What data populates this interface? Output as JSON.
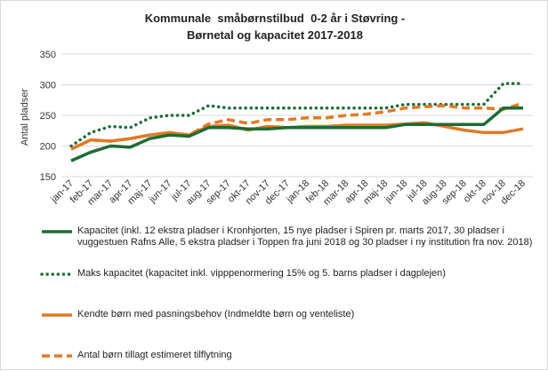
{
  "chart_data": {
    "type": "line",
    "title_lines": [
      "Kommunale  småbørnstilbud  0-2 år i Støvring -",
      "Børnetal og kapacitet 2017-2018"
    ],
    "ylabel": "Antal pladser",
    "xlabel": "",
    "ylim": [
      150,
      350
    ],
    "yticks": [
      150,
      200,
      250,
      300,
      350
    ],
    "grid": true,
    "legend_position": "bottom",
    "categories": [
      "jan-17",
      "feb-17",
      "mar-17",
      "apr-17",
      "maj-17",
      "jun-17",
      "jul-17",
      "aug-17",
      "sep-17",
      "okt-17",
      "nov-17",
      "dec-17",
      "jan-18",
      "feb-18",
      "mar-18",
      "apr-18",
      "maj-18",
      "jun-18",
      "jul-18",
      "aug-18",
      "sep-18",
      "okt-18",
      "nov-18",
      "dec-18"
    ],
    "series": [
      {
        "name": "Kapacitet (inkl. 12 ekstra pladser i Kronhjorten, 15 nye pladser i Spiren pr. marts 2017, 30 pladser i vuggestuen Rafns Alle,  5 ekstra pladser i Toppen fra juni 2018 og 30 pladser i ny institution fra nov. 2018)",
        "color": "#1e6b35",
        "style": "solid",
        "values": [
          176,
          190,
          200,
          198,
          212,
          218,
          216,
          230,
          230,
          228,
          228,
          230,
          230,
          230,
          230,
          230,
          230,
          235,
          235,
          235,
          235,
          235,
          262,
          262
        ]
      },
      {
        "name": "Maks kapacitet (kapacitet inkl. vipppenormering 15% og 5. barns pladser i dagplejen)",
        "color": "#1e6b35",
        "style": "dotted",
        "values": [
          200,
          222,
          232,
          230,
          246,
          250,
          250,
          266,
          262,
          262,
          262,
          262,
          262,
          262,
          262,
          262,
          262,
          268,
          268,
          268,
          268,
          268,
          302,
          302
        ]
      },
      {
        "name": "Kendte børn med pasningsbehov (Indmeldte børn og venteliste)",
        "color": "#e07a26",
        "style": "solid",
        "values": [
          195,
          210,
          208,
          212,
          218,
          222,
          218,
          232,
          234,
          226,
          232,
          230,
          232,
          232,
          234,
          234,
          234,
          236,
          238,
          232,
          226,
          222,
          222,
          228
        ]
      },
      {
        "name": "Antal børn tillagt estimeret tilflytning",
        "color": "#e07a26",
        "style": "dashed",
        "values": [
          195,
          210,
          208,
          212,
          218,
          222,
          218,
          236,
          243,
          237,
          243,
          243,
          246,
          246,
          250,
          252,
          256,
          262,
          264,
          266,
          262,
          262,
          260,
          270
        ]
      }
    ]
  }
}
